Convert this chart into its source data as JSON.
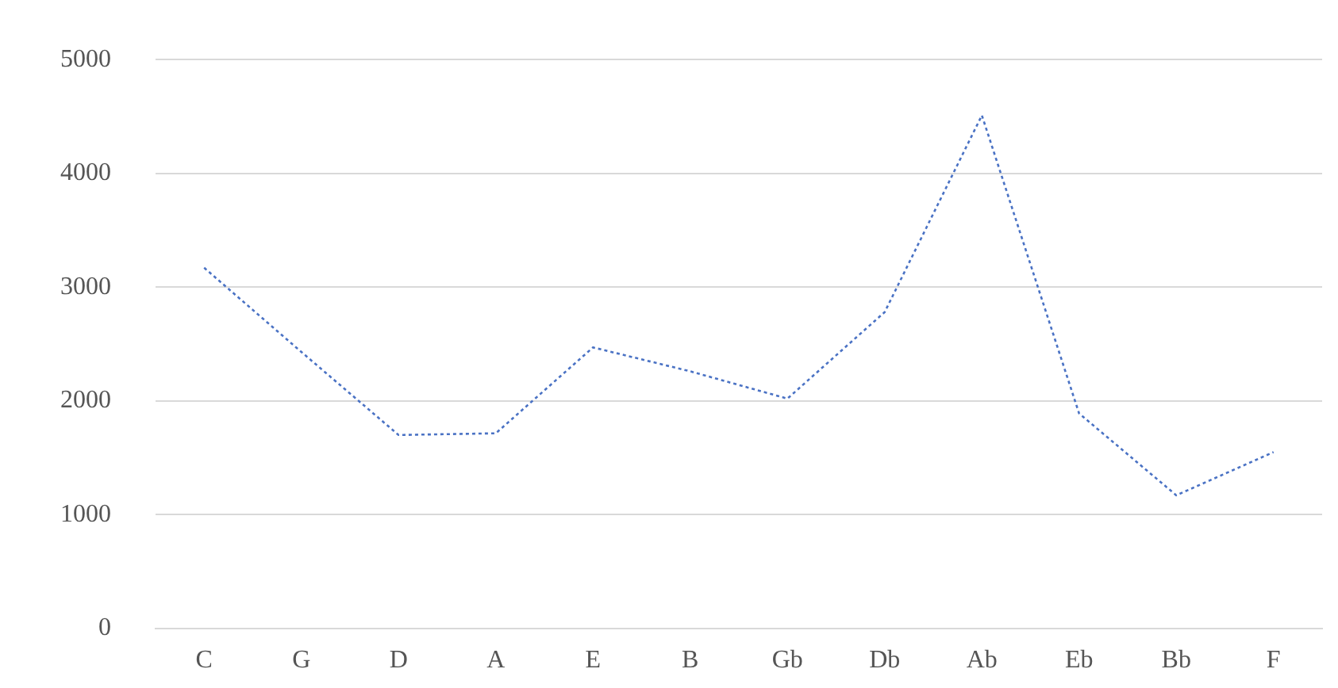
{
  "chart_data": {
    "type": "line",
    "categories": [
      "C",
      "G",
      "D",
      "A",
      "E",
      "B",
      "Gb",
      "Db",
      "Ab",
      "Eb",
      "Bb",
      "F"
    ],
    "series": [
      {
        "color": "#4a72c4",
        "values": [
          3170,
          2430,
          1700,
          1715,
          2470,
          2260,
          2020,
          2780,
          4510,
          1890,
          1170,
          1550
        ]
      }
    ],
    "ylim": [
      0,
      5000
    ],
    "yticks": [
      0,
      1000,
      2000,
      3000,
      4000,
      5000
    ],
    "grid": "y",
    "legend": false,
    "marker": "none",
    "line_style": "dotted"
  }
}
